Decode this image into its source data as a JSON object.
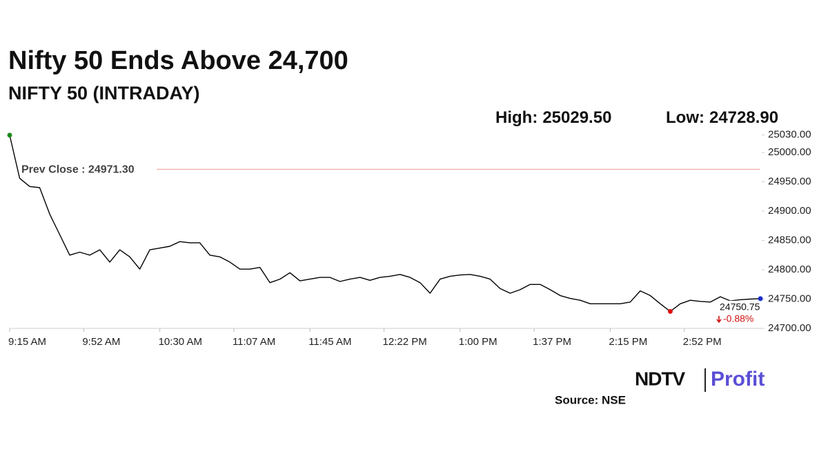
{
  "chart_data": {
    "type": "line",
    "title": "Nifty 50 Ends Above 24,700",
    "subtitle": "NIFTY 50 (INTRADAY)",
    "high_label": "High:",
    "high": {
      "value": 25029.5,
      "label": "25029.50"
    },
    "low_label": "Low:",
    "low": {
      "value": 24728.9,
      "label": "24728.90"
    },
    "prev_close": {
      "value": 24971.3,
      "label": "Prev Close : 24971.30"
    },
    "last": {
      "value": 24750.75,
      "label": "24750.75"
    },
    "change_label": "-0.88%",
    "source": "Source: NSE",
    "logo_brand": "NDTV",
    "logo_product": "Profit",
    "x": [
      "9:15 AM",
      "9:20 AM",
      "9:25 AM",
      "9:30 AM",
      "9:35 AM",
      "9:40 AM",
      "9:45 AM",
      "9:50 AM",
      "9:55 AM",
      "10:00 AM",
      "10:05 AM",
      "10:10 AM",
      "10:15 AM",
      "10:20 AM",
      "10:25 AM",
      "10:30 AM",
      "10:35 AM",
      "10:40 AM",
      "10:45 AM",
      "10:50 AM",
      "10:55 AM",
      "11:00 AM",
      "11:05 AM",
      "11:10 AM",
      "11:15 AM",
      "11:20 AM",
      "11:25 AM",
      "11:30 AM",
      "11:35 AM",
      "11:40 AM",
      "11:45 AM",
      "11:50 AM",
      "11:55 AM",
      "12:00 PM",
      "12:05 PM",
      "12:10 PM",
      "12:15 PM",
      "12:20 PM",
      "12:25 PM",
      "12:30 PM",
      "12:35 PM",
      "12:40 PM",
      "12:45 PM",
      "12:50 PM",
      "12:55 PM",
      "1:00 PM",
      "1:05 PM",
      "1:10 PM",
      "1:15 PM",
      "1:20 PM",
      "1:25 PM",
      "1:30 PM",
      "1:35 PM",
      "1:40 PM",
      "1:45 PM",
      "1:50 PM",
      "1:55 PM",
      "2:00 PM",
      "2:05 PM",
      "2:10 PM",
      "2:15 PM",
      "2:20 PM",
      "2:25 PM",
      "2:30 PM",
      "2:35 PM",
      "2:40 PM",
      "2:45 PM",
      "2:50 PM",
      "2:55 PM",
      "3:00 PM",
      "3:05 PM",
      "3:10 PM",
      "3:15 PM",
      "3:20 PM",
      "3:25 PM",
      "3:30 PM"
    ],
    "series": [
      {
        "name": "NIFTY 50",
        "color": "#000000",
        "values": [
          25029.5,
          24956,
          24942,
          24940,
          24895,
          24860,
          24825,
          24830,
          24825,
          24834,
          24813,
          24834,
          24822,
          24801,
          24834,
          24837,
          24840,
          24848,
          24846,
          24846,
          24825,
          24822,
          24813,
          24801,
          24801,
          24804,
          24778,
          24784,
          24795,
          24781,
          24784,
          24787,
          24787,
          24780,
          24784,
          24787,
          24782,
          24787,
          24789,
          24792,
          24787,
          24778,
          24760,
          24784,
          24789,
          24791,
          24792,
          24789,
          24784,
          24768,
          24760,
          24766,
          24775,
          24775,
          24766,
          24756,
          24751,
          24748,
          24742,
          24742,
          24742,
          24742,
          24745,
          24764,
          24756,
          24742,
          24728.9,
          24742,
          24748,
          24746,
          24745,
          24754,
          24747,
          24749,
          24750,
          24750.75
        ]
      }
    ],
    "xlim": [
      "9:15 AM",
      "3:30 PM"
    ],
    "xticks": [
      "9:15 AM",
      "9:52 AM",
      "10:30 AM",
      "11:07 AM",
      "11:45 AM",
      "12:22 PM",
      "1:00 PM",
      "1:37 PM",
      "2:15 PM",
      "2:52 PM"
    ],
    "ylim": [
      24700,
      25040
    ],
    "yticks": [
      {
        "value": 24700,
        "label": "24700.00"
      },
      {
        "value": 24750,
        "label": "24750.00"
      },
      {
        "value": 24800,
        "label": "24800.00"
      },
      {
        "value": 24850,
        "label": "24850.00"
      },
      {
        "value": 24900,
        "label": "24900.00"
      },
      {
        "value": 24950,
        "label": "24950.00"
      },
      {
        "value": 25000,
        "label": "25000.00"
      },
      {
        "value": 25030,
        "label": "25030.00"
      }
    ]
  }
}
